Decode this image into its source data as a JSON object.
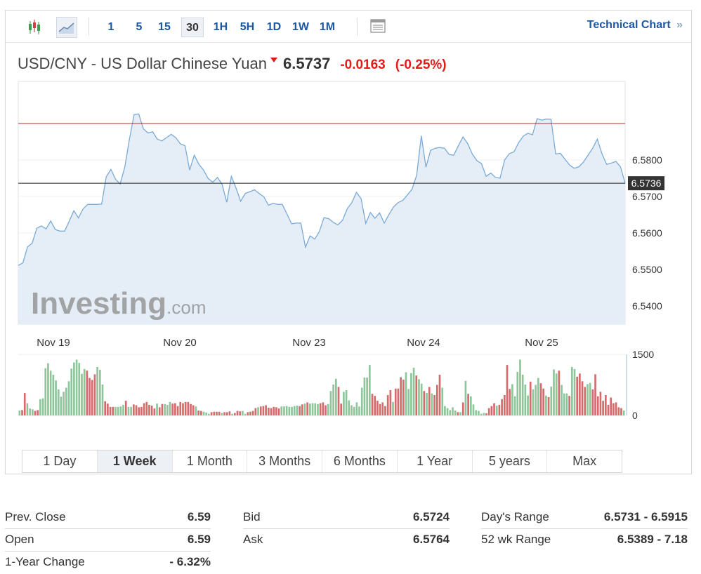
{
  "toolbar": {
    "chart_types": [
      {
        "name": "candlestick-icon",
        "active": false
      },
      {
        "name": "line-chart-icon",
        "active": true
      }
    ],
    "intervals": [
      {
        "label": "1",
        "active": false
      },
      {
        "label": "5",
        "active": false
      },
      {
        "label": "15",
        "active": false
      },
      {
        "label": "30",
        "active": true
      },
      {
        "label": "1H",
        "active": false
      },
      {
        "label": "5H",
        "active": false
      },
      {
        "label": "1D",
        "active": false
      },
      {
        "label": "1W",
        "active": false
      },
      {
        "label": "1M",
        "active": false
      }
    ],
    "table_icon": "table-icon",
    "technical_chart_label": "Technical Chart",
    "technical_chart_arrow": "»"
  },
  "header": {
    "pair": "USD/CNY - US Dollar Chinese Yuan",
    "last": "6.5737",
    "change": "-0.0163",
    "change_pct": "(-0.25%)",
    "direction_icon": "down-arrow-icon"
  },
  "colors": {
    "line": "#7aaad6",
    "area": "#e5eef7",
    "up": "#8bc79a",
    "down": "#d46a6a",
    "reference": "#e21b1b",
    "accent": "#1d57a0"
  },
  "chart_data": {
    "type": "area",
    "title": "",
    "xlabel": "",
    "ylabel": "",
    "ylim": [
      6.535,
      6.6015
    ],
    "y_ticks": [
      "6.5800",
      "6.5700",
      "6.5600",
      "6.5500",
      "6.5400"
    ],
    "x_labels": [
      "Nov 19",
      "Nov 20",
      "Nov 23",
      "Nov 24",
      "Nov 25"
    ],
    "previous_close_line": 6.59,
    "current_price_label": "6.5736",
    "current_price": 6.5736,
    "price": [
      6.5511,
      6.5518,
      6.5562,
      6.5572,
      6.5613,
      6.5619,
      6.5611,
      6.5633,
      6.5609,
      6.5605,
      6.5605,
      6.5632,
      6.5661,
      6.5641,
      6.5666,
      6.5678,
      6.5678,
      6.5678,
      6.5679,
      6.5754,
      6.5774,
      6.5747,
      6.5734,
      6.5781,
      6.5857,
      6.5924,
      6.5926,
      6.5885,
      6.5874,
      6.5877,
      6.5857,
      6.5852,
      6.5861,
      6.587,
      6.5861,
      6.5844,
      6.5839,
      6.5772,
      6.5813,
      6.5788,
      6.5772,
      6.5749,
      6.5739,
      6.5752,
      6.5733,
      6.5684,
      6.5755,
      6.5723,
      6.5687,
      6.5708,
      6.5713,
      6.5718,
      6.5708,
      6.5699,
      6.5676,
      6.5681,
      6.5678,
      6.5678,
      6.5652,
      6.5625,
      6.5627,
      6.5627,
      6.5561,
      6.5592,
      6.5583,
      6.5604,
      6.5642,
      6.5639,
      6.5629,
      6.5622,
      6.5635,
      6.5666,
      6.5683,
      6.5711,
      6.5694,
      6.5626,
      6.5656,
      6.564,
      6.5655,
      6.5627,
      6.565,
      6.5671,
      6.5683,
      6.5689,
      6.5704,
      6.572,
      6.5758,
      6.5866,
      6.578,
      6.5826,
      6.5832,
      6.5834,
      6.5832,
      6.5815,
      6.5813,
      6.5839,
      6.5863,
      6.5845,
      6.5816,
      6.5798,
      6.579,
      6.5755,
      6.5764,
      6.5752,
      6.575,
      6.58,
      6.5817,
      6.5822,
      6.5847,
      6.5865,
      6.5873,
      6.5869,
      6.5913,
      6.5909,
      6.5912,
      6.5911,
      6.5816,
      6.5818,
      6.5802,
      6.5786,
      6.5777,
      6.5781,
      6.5794,
      6.5813,
      6.5832,
      6.5857,
      6.5817,
      6.5788,
      6.5791,
      6.5796,
      6.5781,
      6.5736
    ],
    "volume_ylim": [
      0,
      1500
    ],
    "volume_ticks": [
      "1500",
      "0"
    ],
    "volume": [
      120,
      130,
      550,
      300,
      170,
      150,
      110,
      130,
      400,
      420,
      1160,
      1280,
      1100,
      1000,
      860,
      640,
      460,
      580,
      680,
      840,
      1150,
      1300,
      1370,
      1290,
      1020,
      1140,
      1100,
      920,
      870,
      1010,
      1190,
      1120,
      760,
      350,
      290,
      210,
      210,
      210,
      210,
      220,
      260,
      360,
      210,
      210,
      270,
      250,
      200,
      210,
      300,
      330,
      260,
      240,
      170,
      290,
      200,
      280,
      280,
      260,
      330,
      290,
      300,
      230,
      330,
      300,
      330,
      330,
      280,
      250,
      220,
      120,
      110,
      90,
      70,
      40,
      80,
      90,
      90,
      90,
      60,
      80,
      80,
      100,
      40,
      60,
      110,
      100,
      110,
      40,
      80,
      90,
      110,
      180,
      200,
      220,
      230,
      250,
      190,
      180,
      210,
      200,
      170,
      220,
      220,
      230,
      210,
      210,
      230,
      240,
      230,
      270,
      290,
      320,
      290,
      300,
      300,
      280,
      300,
      320,
      250,
      280,
      600,
      760,
      900,
      700,
      290,
      580,
      620,
      370,
      250,
      210,
      320,
      220,
      680,
      930,
      930,
      1240,
      530,
      480,
      360,
      280,
      320,
      230,
      500,
      620,
      330,
      660,
      660,
      940,
      880,
      1060,
      650,
      1040,
      1170,
      980,
      890,
      780,
      600,
      550,
      700,
      540,
      500,
      750,
      1000,
      680,
      230,
      180,
      130,
      200,
      120,
      80,
      80,
      320,
      850,
      530,
      470,
      270,
      130,
      110,
      40,
      60,
      50,
      180,
      230,
      300,
      240,
      260,
      400,
      500,
      1240,
      650,
      770,
      470,
      1070,
      1370,
      1000,
      760,
      490,
      830,
      640,
      750,
      920,
      790,
      660,
      490,
      450,
      710,
      1130,
      1030,
      1100,
      750,
      540,
      540,
      480,
      1190,
      1140,
      950,
      1030,
      840,
      700,
      770,
      800,
      640,
      1010,
      470,
      580,
      360,
      500,
      260,
      440,
      300,
      320,
      200,
      180,
      120
    ],
    "volume_direction": "udduuudduuuuuuuuuuuuuuuuuudddduuudddduuuuduudddddddddudduuudddddddddudduuudddduddduddduuddddudddddddduuuuuuudduduuuuddduuuudduuuuuuuuuuuddddddddudddduuuuduudududdduuuuuudududuuuuuudddduddddduuuuuuuduuudduduuuduuuduudddduudddddddddddduu"
  },
  "watermark": {
    "brand": "Investing",
    "suffix": ".com"
  },
  "ranges": [
    {
      "label": "1 Day",
      "active": false
    },
    {
      "label": "1 Week",
      "active": true
    },
    {
      "label": "1 Month",
      "active": false
    },
    {
      "label": "3 Months",
      "active": false
    },
    {
      "label": "6 Months",
      "active": false
    },
    {
      "label": "1 Year",
      "active": false
    },
    {
      "label": "5 years",
      "active": false
    },
    {
      "label": "Max",
      "active": false
    }
  ],
  "stats": [
    [
      {
        "label": "Prev. Close",
        "value": "6.59"
      },
      {
        "label": "Open",
        "value": "6.59"
      },
      {
        "label": "1-Year Change",
        "value": "- 6.32%"
      }
    ],
    [
      {
        "label": "Bid",
        "value": "6.5724"
      },
      {
        "label": "Ask",
        "value": "6.5764"
      }
    ],
    [
      {
        "label": "Day's Range",
        "value": "6.5731 - 6.5915"
      },
      {
        "label": "52 wk Range",
        "value": "6.5389 - 7.18"
      }
    ]
  ]
}
